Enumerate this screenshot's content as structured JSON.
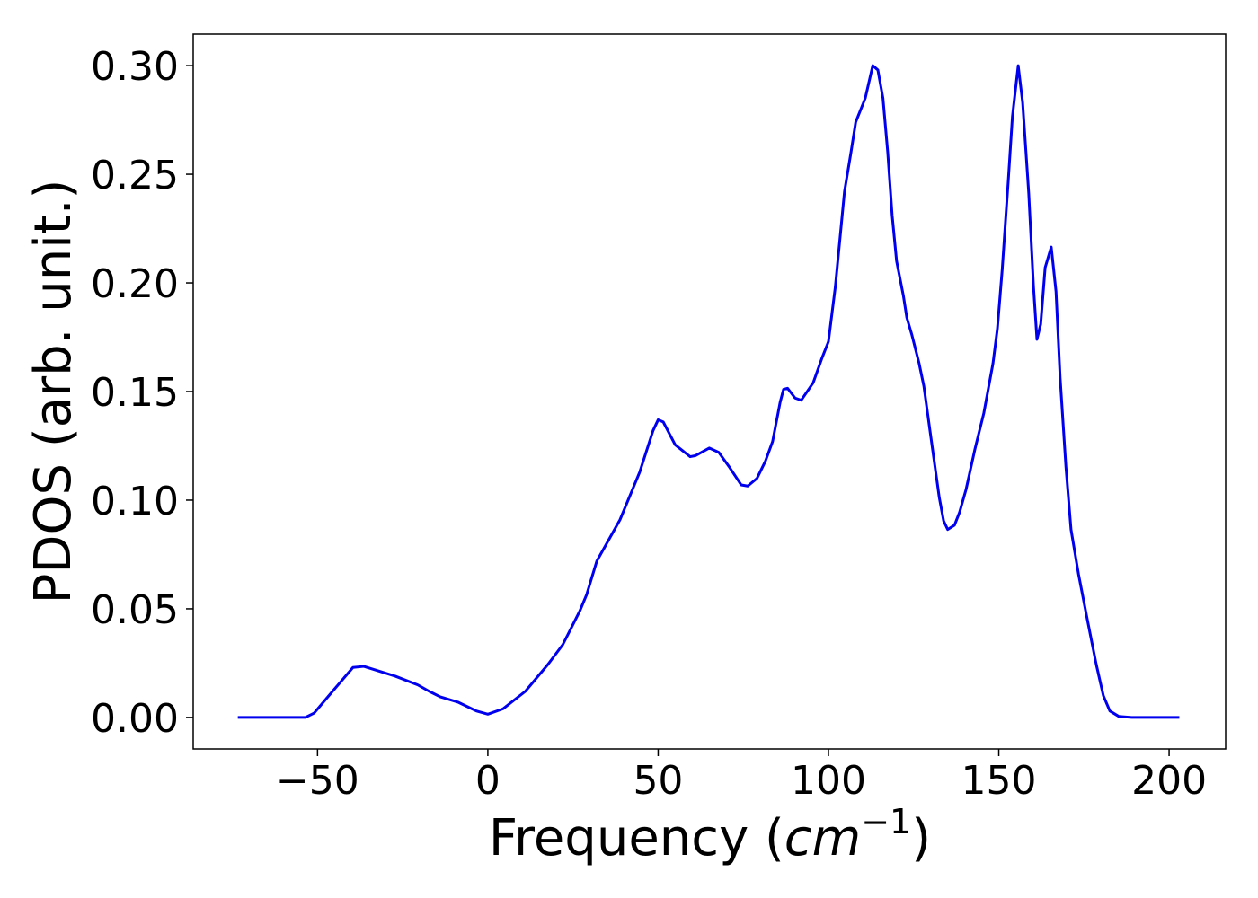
{
  "chart_data": {
    "type": "line",
    "xlabel": [
      "Frequency (",
      "cm",
      "−1",
      ")"
    ],
    "ylabel": "PDOS (arb. unit.)",
    "color": "#0000ee",
    "x": [
      -73.4,
      -53.6,
      -51,
      -45.6,
      -39.6,
      -36.4,
      -27.2,
      -20.6,
      -17.2,
      -14,
      -8.7,
      -3.4,
      0,
      4.5,
      11,
      17.7,
      22,
      27,
      29,
      32,
      38.8,
      44.6,
      48.5,
      50,
      51.5,
      55,
      59.4,
      61,
      65,
      67.8,
      71,
      74.4,
      76.3,
      79,
      81.5,
      83.6,
      85.8,
      86.8,
      88,
      90.2,
      92,
      95.5,
      98,
      100,
      102,
      104.7,
      106.6,
      108,
      110.8,
      113,
      114.5,
      116,
      117.4,
      118.7,
      120,
      122,
      123,
      124.5,
      126.6,
      128,
      129.8,
      132.5,
      133.8,
      135,
      137,
      138.5,
      140.4,
      143,
      145.6,
      148.3,
      149.6,
      151,
      152.8,
      154,
      155.7,
      157,
      158.8,
      160.2,
      161.2,
      162.3,
      163.6,
      165.4,
      166.8,
      168,
      169.7,
      171.2,
      173.4,
      176,
      178.6,
      180.7,
      182.6,
      185.2,
      189,
      203
    ],
    "values": [
      0,
      0,
      0.002,
      0.012,
      0.023,
      0.0235,
      0.019,
      0.015,
      0.012,
      0.0095,
      0.007,
      0.003,
      0.0015,
      0.004,
      0.012,
      0.0245,
      0.0335,
      0.049,
      0.0565,
      0.072,
      0.091,
      0.113,
      0.132,
      0.137,
      0.136,
      0.1255,
      0.12,
      0.1205,
      0.124,
      0.122,
      0.115,
      0.107,
      0.1065,
      0.11,
      0.118,
      0.127,
      0.145,
      0.151,
      0.1515,
      0.147,
      0.146,
      0.154,
      0.165,
      0.173,
      0.198,
      0.242,
      0.26,
      0.274,
      0.285,
      0.3,
      0.298,
      0.285,
      0.26,
      0.231,
      0.21,
      0.194,
      0.184,
      0.176,
      0.163,
      0.1525,
      0.132,
      0.1015,
      0.0905,
      0.0865,
      0.0885,
      0.0945,
      0.105,
      0.1235,
      0.14,
      0.163,
      0.179,
      0.206,
      0.2475,
      0.2765,
      0.3,
      0.283,
      0.241,
      0.198,
      0.174,
      0.181,
      0.207,
      0.2165,
      0.196,
      0.1565,
      0.1155,
      0.0865,
      0.066,
      0.045,
      0.0245,
      0.01,
      0.003,
      0.0005,
      0,
      0
    ],
    "xlim": [
      -86.5,
      216.6
    ],
    "ylim": [
      -0.0145,
      0.3145
    ],
    "xticks": [
      {
        "value": -50,
        "label": "−50"
      },
      0,
      50,
      100,
      150,
      200
    ],
    "yticks": [
      {
        "value": 0,
        "label": "0.00"
      },
      {
        "value": 0.05,
        "label": "0.05"
      },
      {
        "value": 0.1,
        "label": "0.10"
      },
      {
        "value": 0.15,
        "label": "0.15"
      },
      {
        "value": 0.2,
        "label": "0.20"
      },
      {
        "value": 0.25,
        "label": "0.25"
      },
      {
        "value": 0.3,
        "label": "0.30"
      }
    ],
    "grid": false
  }
}
